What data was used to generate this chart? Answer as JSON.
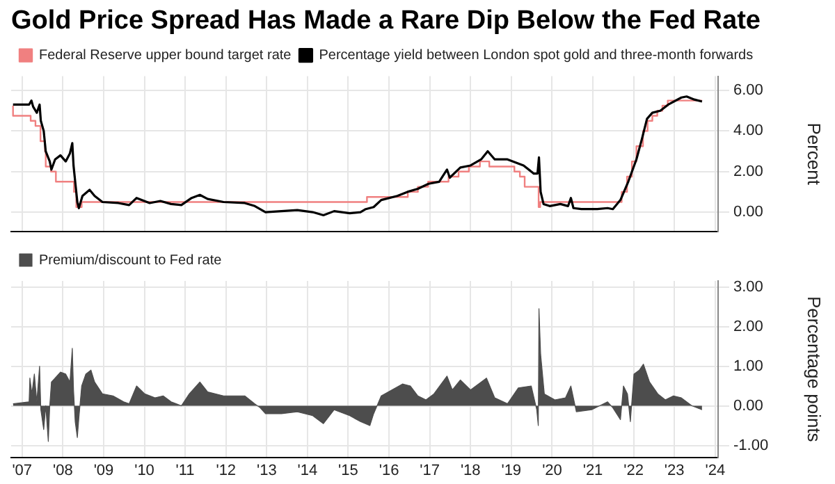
{
  "chart_data": [
    {
      "type": "line",
      "title": "Gold Price Spread Has Made a Rare Dip Below the Fed Rate",
      "ylabel": "Percent",
      "legend": "top left",
      "grid": true,
      "tick_labels": "y",
      "xlim": [
        "2007-03-25",
        "2024-07-27"
      ],
      "xticks": [
        {
          "value": "2007-07",
          "label": null
        },
        {
          "value": "2008-07",
          "label": null
        },
        {
          "value": "2009-07",
          "label": null
        },
        {
          "value": "2010-07",
          "label": null
        },
        {
          "value": "2011-07",
          "label": null
        },
        {
          "value": "2012-07",
          "label": null
        },
        {
          "value": "2013-07",
          "label": null
        },
        {
          "value": "2014-07",
          "label": null
        },
        {
          "value": "2015-07",
          "label": null
        },
        {
          "value": "2016-07",
          "label": null
        },
        {
          "value": "2017-07",
          "label": null
        },
        {
          "value": "2018-07",
          "label": null
        },
        {
          "value": "2019-07",
          "label": null
        },
        {
          "value": "2020-07",
          "label": null
        },
        {
          "value": "2021-07",
          "label": null
        },
        {
          "value": "2022-07",
          "label": null
        },
        {
          "value": "2023-07",
          "label": null
        },
        {
          "value": "2024-07",
          "label": null
        }
      ],
      "ylim": [
        -0.95,
        6.7
      ],
      "yticks": [
        {
          "value": 0,
          "label": "0.00"
        },
        {
          "value": 2,
          "label": "2.00"
        },
        {
          "value": 4,
          "label": "4.00"
        },
        {
          "value": 6,
          "label": "6.00"
        }
      ],
      "series": [
        {
          "name": "Federal Reserve upper bound target rate",
          "type": "step",
          "color": "#f08080",
          "x": [
            "2007-04-11",
            "2007-09-16",
            "2007-10-29",
            "2007-12-13",
            "2008-01-22",
            "2008-01-29",
            "2008-03-16",
            "2008-04-29",
            "2008-10-08",
            "2008-10-29",
            "2008-12-16",
            "2015-12-16",
            "2016-12-16",
            "2017-03-16",
            "2017-06-16",
            "2017-12-16",
            "2018-03-16",
            "2018-06-16",
            "2018-09-23",
            "2018-12-16",
            "2019-07-29",
            "2019-09-16",
            "2019-10-29",
            "2020-03-02",
            "2020-03-16",
            "2022-03-16",
            "2022-05-03",
            "2022-06-16",
            "2022-07-26",
            "2022-09-23",
            "2022-11-03",
            "2022-12-16",
            "2023-01-29",
            "2023-03-16",
            "2023-05-03",
            "2023-07-26",
            "2024-03-05"
          ],
          "values": [
            5.25,
            4.75,
            4.5,
            4.25,
            3.5,
            3.0,
            2.25,
            2.0,
            1.5,
            1.0,
            0.25,
            0.5,
            0.75,
            1.0,
            1.25,
            1.5,
            1.75,
            2.0,
            2.25,
            2.5,
            2.25,
            2.0,
            1.75,
            1.25,
            0.25,
            0.5,
            1.0,
            1.75,
            2.5,
            3.25,
            4.0,
            4.5,
            4.75,
            5.0,
            5.25,
            5.5,
            5.5
          ]
        },
        {
          "name": "Percentage yield between London spot gold and three-month forwards",
          "color": "#000000",
          "x": [
            "2007-04-11",
            "2007-09-02",
            "2007-09-23",
            "2007-10-08",
            "2007-11-10",
            "2007-12-05",
            "2007-12-16",
            "2008-01-11",
            "2008-01-29",
            "2008-03-05",
            "2008-03-20",
            "2008-04-22",
            "2008-06-09",
            "2008-07-26",
            "2008-09-02",
            "2008-09-23",
            "2008-10-04",
            "2008-10-19",
            "2008-11-07",
            "2008-11-21",
            "2008-12-23",
            "2009-02-25",
            "2009-04-11",
            "2009-06-20",
            "2009-11-10",
            "2010-02-14",
            "2010-04-22",
            "2010-08-17",
            "2010-11-21",
            "2011-02-25",
            "2011-05-28",
            "2011-08-28",
            "2011-11-10",
            "2012-01-19",
            "2012-06-09",
            "2012-12-16",
            "2013-03-16",
            "2013-06-20",
            "2013-11-10",
            "2014-04-01",
            "2014-08-17",
            "2014-11-21",
            "2015-02-25",
            "2015-07-15",
            "2015-10-19",
            "2015-12-05",
            "2016-02-14",
            "2016-04-22",
            "2016-09-13",
            "2016-12-13",
            "2017-03-16",
            "2017-06-20",
            "2017-09-23",
            "2017-12-02",
            "2017-12-27",
            "2018-04-01",
            "2018-07-01",
            "2018-10-04",
            "2018-12-02",
            "2019-02-03",
            "2019-05-28",
            "2019-10-19",
            "2020-01-19",
            "2020-02-21",
            "2020-03-05",
            "2020-03-20",
            "2020-04-15",
            "2020-06-09",
            "2020-09-13",
            "2020-11-21",
            "2020-12-16",
            "2021-01-08",
            "2021-03-20",
            "2021-08-10",
            "2021-11-10",
            "2021-12-27",
            "2022-03-05",
            "2022-05-14",
            "2022-07-26",
            "2022-09-13",
            "2022-10-29",
            "2022-12-16",
            "2023-02-25",
            "2023-05-07",
            "2023-09-02",
            "2023-10-19",
            "2023-12-27",
            "2024-03-05"
          ],
          "values": [
            5.3,
            5.3,
            5.5,
            5.2,
            4.9,
            5.3,
            4.5,
            4.0,
            3.0,
            2.5,
            2.1,
            2.6,
            2.8,
            2.5,
            2.9,
            3.4,
            2.3,
            1.5,
            0.5,
            0.2,
            0.8,
            1.1,
            0.8,
            0.5,
            0.45,
            0.35,
            0.7,
            0.45,
            0.55,
            0.4,
            0.35,
            0.7,
            0.85,
            0.65,
            0.5,
            0.45,
            0.3,
            0.0,
            0.05,
            0.1,
            0.0,
            -0.15,
            0.05,
            -0.05,
            0.0,
            0.15,
            0.25,
            0.6,
            0.8,
            1.0,
            1.15,
            1.4,
            1.5,
            2.1,
            1.7,
            2.2,
            2.3,
            2.6,
            3.0,
            2.6,
            2.6,
            2.3,
            1.9,
            1.9,
            2.7,
            1.0,
            0.4,
            0.3,
            0.4,
            0.3,
            0.7,
            0.2,
            0.15,
            0.15,
            0.2,
            0.15,
            0.6,
            1.5,
            2.6,
            3.6,
            4.6,
            4.9,
            5.0,
            5.3,
            5.65,
            5.7,
            5.55,
            5.45
          ]
        }
      ]
    },
    {
      "type": "area",
      "ylabel": "Percentage points",
      "legend": "top left",
      "grid": true,
      "xlim": [
        "2007-03-25",
        "2024-07-27"
      ],
      "xticks": [
        {
          "value": "2007-07",
          "label": "'07"
        },
        {
          "value": "2008-07",
          "label": "'08"
        },
        {
          "value": "2009-07",
          "label": "'09"
        },
        {
          "value": "2010-07",
          "label": "'10"
        },
        {
          "value": "2011-07",
          "label": "'11"
        },
        {
          "value": "2012-07",
          "label": "'12"
        },
        {
          "value": "2013-07",
          "label": "'13"
        },
        {
          "value": "2014-07",
          "label": "'14"
        },
        {
          "value": "2015-07",
          "label": "'15"
        },
        {
          "value": "2016-07",
          "label": "'16"
        },
        {
          "value": "2017-07",
          "label": "'17"
        },
        {
          "value": "2018-07",
          "label": "'18"
        },
        {
          "value": "2019-07",
          "label": "'19"
        },
        {
          "value": "2020-07",
          "label": "'20"
        },
        {
          "value": "2021-07",
          "label": "'21"
        },
        {
          "value": "2022-07",
          "label": "'22"
        },
        {
          "value": "2023-07",
          "label": "'23"
        },
        {
          "value": "2024-07",
          "label": "'24"
        }
      ],
      "ylim": [
        -1.3,
        3.15
      ],
      "yticks": [
        {
          "value": -1,
          "label": "-1.00"
        },
        {
          "value": 0,
          "label": "0.00"
        },
        {
          "value": 1,
          "label": "1.00"
        },
        {
          "value": 2,
          "label": "2.00"
        },
        {
          "value": 3,
          "label": "3.00"
        }
      ],
      "series": [
        {
          "name": "Premium/discount to Fed rate",
          "color": "#4d4d4d",
          "x": [
            "2007-04-11",
            "2007-09-02",
            "2007-09-09",
            "2007-09-27",
            "2007-10-19",
            "2007-11-10",
            "2007-12-05",
            "2007-12-16",
            "2008-01-11",
            "2008-01-29",
            "2008-02-21",
            "2008-03-05",
            "2008-03-20",
            "2008-04-22",
            "2008-06-09",
            "2008-07-26",
            "2008-09-02",
            "2008-09-23",
            "2008-10-04",
            "2008-10-19",
            "2008-11-07",
            "2008-11-21",
            "2008-12-16",
            "2009-01-22",
            "2009-03-09",
            "2009-04-11",
            "2009-06-20",
            "2009-09-23",
            "2009-12-27",
            "2010-02-14",
            "2010-04-22",
            "2010-07-04",
            "2010-10-04",
            "2010-12-16",
            "2011-02-25",
            "2011-05-28",
            "2011-08-07",
            "2011-11-10",
            "2012-01-19",
            "2012-06-09",
            "2012-12-16",
            "2013-03-16",
            "2013-05-03",
            "2013-06-20",
            "2013-11-10",
            "2014-04-01",
            "2014-08-17",
            "2014-11-21",
            "2015-02-25",
            "2015-07-15",
            "2015-10-19",
            "2016-01-11",
            "2016-02-14",
            "2016-04-22",
            "2016-07-26",
            "2016-10-29",
            "2017-01-08",
            "2017-03-16",
            "2017-05-28",
            "2017-08-07",
            "2017-12-02",
            "2018-01-19",
            "2018-04-01",
            "2018-07-01",
            "2018-11-21",
            "2019-02-03",
            "2019-05-28",
            "2019-09-02",
            "2019-12-27",
            "2020-02-14",
            "2020-02-28",
            "2020-03-05",
            "2020-03-20",
            "2020-04-22",
            "2020-07-26",
            "2020-10-29",
            "2020-12-16",
            "2021-02-03",
            "2021-06-20",
            "2021-11-10",
            "2021-12-27",
            "2022-03-05",
            "2022-04-01",
            "2022-05-07",
            "2022-06-02",
            "2022-07-04",
            "2022-08-21",
            "2022-09-27",
            "2022-11-21",
            "2023-02-03",
            "2023-04-11",
            "2023-06-23",
            "2023-09-02",
            "2023-12-05",
            "2024-03-05"
          ],
          "values": [
            0.05,
            0.1,
            0.7,
            0.3,
            0.8,
            0.1,
            1.0,
            -0.1,
            -0.6,
            0.0,
            -0.9,
            0.0,
            0.6,
            0.7,
            0.85,
            0.8,
            0.6,
            1.45,
            0.4,
            -0.4,
            -0.8,
            -0.3,
            0.5,
            0.8,
            0.9,
            0.6,
            0.3,
            0.25,
            0.1,
            0.05,
            0.5,
            0.3,
            0.2,
            0.25,
            0.1,
            0.0,
            0.3,
            0.6,
            0.35,
            0.25,
            0.25,
            0.05,
            -0.05,
            -0.2,
            -0.2,
            -0.15,
            -0.25,
            -0.45,
            -0.1,
            -0.25,
            -0.4,
            -0.5,
            -0.2,
            0.25,
            0.4,
            0.55,
            0.5,
            0.25,
            0.15,
            0.3,
            0.75,
            0.4,
            0.65,
            0.4,
            0.7,
            0.2,
            0.05,
            0.45,
            0.5,
            -0.1,
            -0.5,
            2.45,
            1.3,
            0.3,
            0.15,
            0.2,
            0.5,
            -0.15,
            -0.1,
            0.1,
            -0.05,
            -0.35,
            0.5,
            0.3,
            -0.4,
            0.8,
            0.9,
            1.05,
            0.6,
            0.3,
            0.15,
            0.25,
            0.2,
            0.0,
            -0.1
          ]
        }
      ]
    }
  ]
}
